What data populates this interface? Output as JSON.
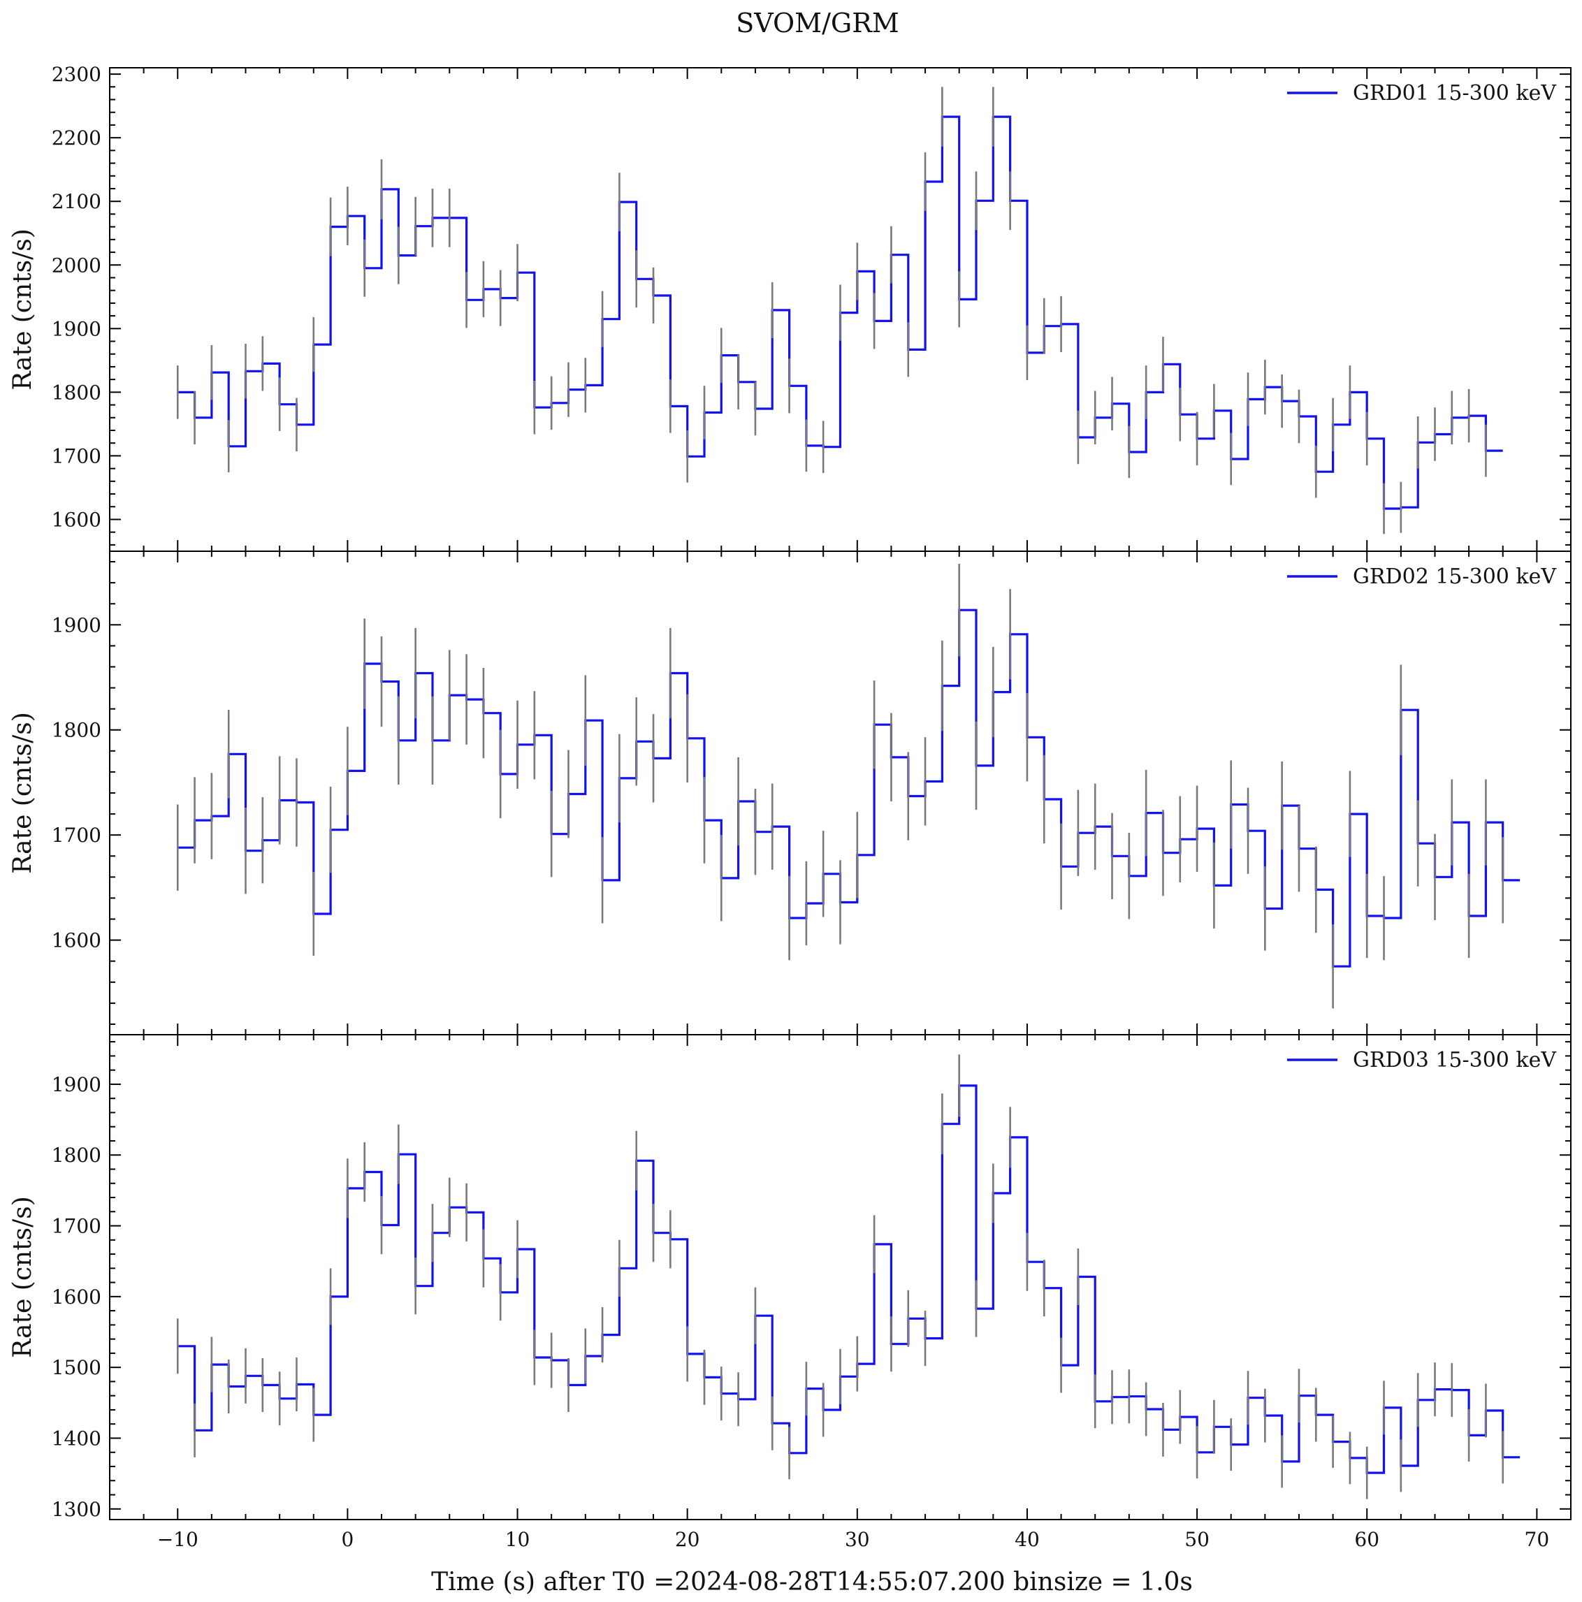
{
  "figure_title": "SVOM/GRM",
  "colors": {
    "series": "#1212ee",
    "errorbar": "#7a7a7a",
    "axes": "#000000"
  },
  "chart_data": [
    {
      "type": "line",
      "drawstyle": "steps",
      "xlim": [
        -14,
        72
      ],
      "ylim": [
        1550,
        2310
      ],
      "ylabel": "Rate (cnts/s)",
      "legend": {
        "label": "GRD01 15-300 keV",
        "placement": "top-right"
      },
      "x_ticks": [
        -10,
        0,
        10,
        20,
        30,
        40,
        50,
        60,
        70
      ],
      "x_tick_labels": [
        "−10",
        "0",
        "10",
        "20",
        "30",
        "40",
        "50",
        "60",
        "70"
      ],
      "y_ticks": [
        1600,
        1700,
        1800,
        1900,
        2000,
        2100,
        2200,
        2300
      ],
      "y_tick_labels": [
        "1600",
        "1700",
        "1800",
        "1900",
        "2000",
        "2100",
        "2200",
        "2300"
      ],
      "x_start": -10,
      "binsize": 1,
      "values": [
        1800,
        1760,
        1831,
        1715,
        1833,
        1845,
        1781,
        1749,
        1875,
        2060,
        2077,
        1995,
        2119,
        2015,
        2061,
        2074,
        2074,
        1945,
        1962,
        1948,
        1988,
        1776,
        1783,
        1804,
        1811,
        1915,
        2099,
        1978,
        1952,
        1778,
        1699,
        1768,
        1858,
        1816,
        1774,
        1929,
        1810,
        1716,
        1714,
        1925,
        1990,
        1912,
        2016,
        1867,
        2131,
        2233,
        1946,
        2101,
        2233,
        2101,
        1862,
        1904,
        1907,
        1729,
        1760,
        1782,
        1706,
        1800,
        1844,
        1765,
        1727,
        1771,
        1695,
        1789,
        1808,
        1786,
        1762,
        1675,
        1749,
        1800,
        1727,
        1617,
        1619,
        1721,
        1734,
        1760,
        1763,
        1708
      ],
      "errors": [
        42,
        42,
        43,
        41,
        43,
        43,
        42,
        42,
        43,
        46,
        46,
        45,
        47,
        45,
        46,
        46,
        46,
        44,
        44,
        44,
        45,
        42,
        42,
        43,
        43,
        44,
        46,
        45,
        44,
        42,
        41,
        42,
        43,
        43,
        42,
        44,
        43,
        41,
        41,
        44,
        45,
        44,
        45,
        43,
        46,
        47,
        44,
        46,
        47,
        46,
        43,
        44,
        44,
        42,
        42,
        42,
        41,
        42,
        43,
        42,
        42,
        42,
        41,
        42,
        43,
        42,
        42,
        41,
        42,
        42,
        42,
        40,
        40,
        41,
        42,
        42,
        42,
        41
      ]
    },
    {
      "type": "line",
      "drawstyle": "steps",
      "xlim": [
        -14,
        72
      ],
      "ylim": [
        1510,
        1970
      ],
      "ylabel": "Rate (cnts/s)",
      "legend": {
        "label": "GRD02 15-300 keV",
        "placement": "top-right"
      },
      "x_ticks": [
        -10,
        0,
        10,
        20,
        30,
        40,
        50,
        60,
        70
      ],
      "x_tick_labels": [
        "−10",
        "0",
        "10",
        "20",
        "30",
        "40",
        "50",
        "60",
        "70"
      ],
      "y_ticks": [
        1600,
        1700,
        1800,
        1900
      ],
      "y_tick_labels": [
        "1600",
        "1700",
        "1800",
        "1900"
      ],
      "x_start": -10,
      "binsize": 1,
      "values": [
        1688,
        1714,
        1718,
        1777,
        1685,
        1695,
        1733,
        1731,
        1625,
        1705,
        1761,
        1863,
        1846,
        1790,
        1854,
        1790,
        1833,
        1829,
        1816,
        1758,
        1786,
        1795,
        1701,
        1739,
        1809,
        1657,
        1754,
        1789,
        1773,
        1854,
        1792,
        1714,
        1659,
        1732,
        1703,
        1708,
        1621,
        1635,
        1663,
        1636,
        1681,
        1805,
        1774,
        1737,
        1751,
        1842,
        1914,
        1766,
        1836,
        1891,
        1793,
        1734,
        1670,
        1702,
        1708,
        1680,
        1661,
        1721,
        1683,
        1696,
        1706,
        1652,
        1729,
        1704,
        1630,
        1728,
        1687,
        1648,
        1575,
        1720,
        1623,
        1621,
        1819,
        1692,
        1660,
        1712,
        1623,
        1712,
        1657
      ],
      "errors": [
        41,
        41,
        41,
        42,
        41,
        41,
        42,
        42,
        40,
        41,
        42,
        43,
        43,
        42,
        43,
        42,
        43,
        43,
        43,
        42,
        42,
        42,
        41,
        42,
        43,
        41,
        42,
        42,
        42,
        43,
        42,
        41,
        41,
        42,
        41,
        41,
        40,
        40,
        41,
        40,
        41,
        42,
        42,
        42,
        42,
        43,
        44,
        42,
        43,
        43,
        42,
        42,
        41,
        41,
        41,
        41,
        41,
        41,
        41,
        41,
        41,
        41,
        42,
        41,
        40,
        42,
        41,
        41,
        40,
        41,
        40,
        40,
        43,
        41,
        41,
        41,
        40,
        41,
        41
      ]
    },
    {
      "type": "line",
      "drawstyle": "steps",
      "xlim": [
        -14,
        72
      ],
      "ylim": [
        1285,
        1970
      ],
      "xlabel": "Time (s) after T0 =2024-08-28T14:55:07.200 binsize = 1.0s",
      "ylabel": "Rate (cnts/s)",
      "legend": {
        "label": "GRD03 15-300 keV",
        "placement": "top-right"
      },
      "x_ticks": [
        -10,
        0,
        10,
        20,
        30,
        40,
        50,
        60,
        70
      ],
      "x_tick_labels": [
        "−10",
        "0",
        "10",
        "20",
        "30",
        "40",
        "50",
        "60",
        "70"
      ],
      "y_ticks": [
        1300,
        1400,
        1500,
        1600,
        1700,
        1800,
        1900
      ],
      "y_tick_labels": [
        "1300",
        "1400",
        "1500",
        "1600",
        "1700",
        "1800",
        "1900"
      ],
      "x_start": -10,
      "binsize": 1,
      "values": [
        1530,
        1411,
        1504,
        1473,
        1488,
        1475,
        1456,
        1476,
        1433,
        1600,
        1753,
        1776,
        1701,
        1801,
        1615,
        1690,
        1726,
        1719,
        1654,
        1606,
        1667,
        1514,
        1510,
        1475,
        1516,
        1546,
        1640,
        1792,
        1690,
        1681,
        1519,
        1486,
        1463,
        1455,
        1573,
        1421,
        1379,
        1470,
        1440,
        1487,
        1505,
        1674,
        1533,
        1569,
        1541,
        1844,
        1898,
        1583,
        1746,
        1825,
        1649,
        1612,
        1503,
        1628,
        1452,
        1458,
        1459,
        1441,
        1412,
        1430,
        1380,
        1416,
        1391,
        1457,
        1432,
        1367,
        1460,
        1433,
        1395,
        1372,
        1351,
        1443,
        1361,
        1454,
        1469,
        1468,
        1404,
        1439,
        1373
      ],
      "errors": [
        39,
        38,
        39,
        38,
        39,
        38,
        38,
        38,
        38,
        40,
        42,
        42,
        41,
        42,
        40,
        41,
        42,
        41,
        41,
        40,
        41,
        39,
        39,
        38,
        39,
        39,
        40,
        42,
        41,
        41,
        39,
        39,
        38,
        38,
        40,
        38,
        37,
        38,
        38,
        39,
        39,
        41,
        39,
        40,
        39,
        43,
        44,
        40,
        42,
        43,
        41,
        40,
        39,
        40,
        38,
        38,
        38,
        38,
        38,
        38,
        37,
        38,
        37,
        38,
        38,
        37,
        38,
        38,
        37,
        37,
        37,
        38,
        37,
        38,
        38,
        38,
        37,
        38,
        37
      ]
    }
  ]
}
